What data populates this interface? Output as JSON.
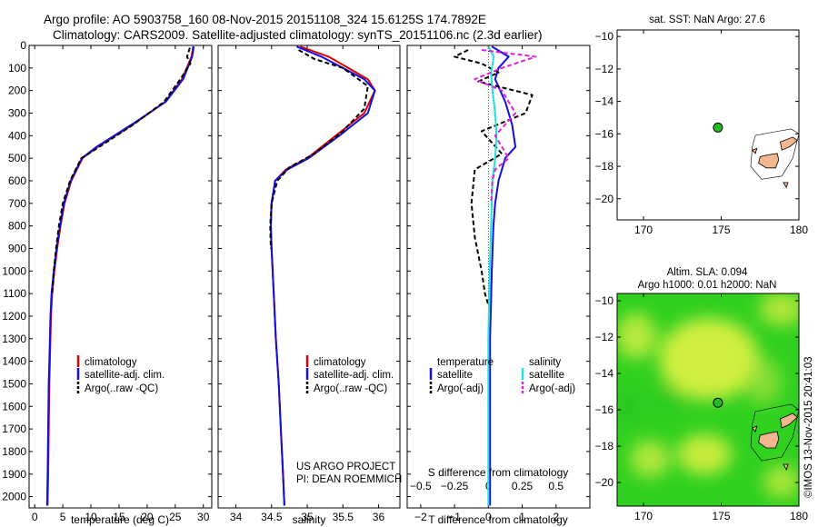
{
  "header": {
    "title_line1": "Argo profile: AO 5903758_160 08-Nov-2015 20151108_324 15.6125S 174.7892E",
    "title_line2": "Climatology: CARS2009. Satellite-adjusted climatology: synTS_20151106.nc (2.3d earlier)"
  },
  "colors": {
    "climatology": "#e00000",
    "satellite": "#1010e0",
    "argo": "#000000",
    "sal_satellite": "#20e0e0",
    "sal_argo": "#e020e0",
    "land": "#f2b690",
    "sla_green": "#30d020",
    "sla_yellow": "#d8f040",
    "marker": "#22bb22"
  },
  "chart_data": [
    {
      "type": "line",
      "id": "temperature-profile",
      "xlabel": "temperature (deg C)",
      "ylabel": "",
      "xlim": [
        -1,
        31.5
      ],
      "ylim": [
        2050,
        0
      ],
      "xticks": [
        0,
        5,
        10,
        15,
        20,
        25,
        30
      ],
      "yticks": [
        0,
        100,
        200,
        300,
        400,
        500,
        600,
        700,
        800,
        900,
        1000,
        1100,
        1200,
        1300,
        1400,
        1500,
        1600,
        1700,
        1800,
        1900,
        2000
      ],
      "legend": [
        "climatology",
        "satellite-adj. clim.",
        "Argo(..raw -QC)"
      ],
      "legend_position": "lower-center",
      "series": [
        {
          "name": "climatology",
          "style": "solid",
          "color": "#e00000",
          "x": [
            28.2,
            27.9,
            26.2,
            23.2,
            17.5,
            11.2,
            8.5,
            6.5,
            5.3,
            4.6,
            4.0,
            3.5,
            3.1,
            2.9,
            2.7,
            2.6,
            2.5,
            2.4,
            2.3
          ],
          "y": [
            5,
            50,
            150,
            250,
            350,
            450,
            500,
            600,
            700,
            800,
            900,
            1000,
            1100,
            1200,
            1400,
            1500,
            1700,
            1900,
            2040
          ]
        },
        {
          "name": "satellite-adj. clim.",
          "style": "solid",
          "color": "#1010e0",
          "x": [
            28.3,
            28.0,
            26.4,
            23.3,
            17.3,
            11.0,
            8.4,
            6.4,
            5.2,
            4.5,
            3.9,
            3.4,
            3.0,
            2.8,
            2.6,
            2.5,
            2.4,
            2.3,
            2.2
          ],
          "y": [
            5,
            50,
            150,
            250,
            350,
            450,
            500,
            600,
            700,
            800,
            900,
            1000,
            1100,
            1200,
            1400,
            1500,
            1700,
            1900,
            2040
          ]
        },
        {
          "name": "Argo(..raw -QC)",
          "style": "dashed",
          "color": "#000000",
          "x": [
            27.6,
            27.1,
            27.7,
            25.9,
            23.0,
            17.6,
            11.5,
            8.3,
            6.3,
            5.0,
            4.3,
            3.8,
            3.4,
            3.1
          ],
          "y": [
            10,
            50,
            80,
            150,
            250,
            350,
            450,
            500,
            600,
            700,
            800,
            900,
            1000,
            1100
          ]
        }
      ]
    },
    {
      "type": "line",
      "id": "salinity-profile",
      "xlabel": "salinity",
      "xlim": [
        33.75,
        36.3
      ],
      "ylim": [
        2050,
        0
      ],
      "xticks": [
        34,
        34.5,
        35,
        35.5,
        36
      ],
      "legend": [
        "climatology",
        "satellite-adj. clim.",
        "Argo(..raw -QC)"
      ],
      "legend_position": "lower-center",
      "annotation_line1": "US ARGO PROJECT",
      "annotation_line2": "PI: DEAN ROEMMICH",
      "series": [
        {
          "name": "climatology",
          "style": "solid",
          "color": "#e00000",
          "x": [
            34.9,
            35.3,
            35.85,
            35.95,
            35.8,
            35.4,
            35.0,
            34.7,
            34.55,
            34.5,
            34.49,
            34.5,
            34.53,
            34.56,
            34.6,
            34.63,
            34.66,
            34.68
          ],
          "y": [
            5,
            50,
            150,
            200,
            300,
            400,
            500,
            550,
            600,
            700,
            800,
            900,
            1100,
            1300,
            1500,
            1700,
            1900,
            2040
          ]
        },
        {
          "name": "satellite-adj. clim.",
          "style": "solid",
          "color": "#1010e0",
          "x": [
            34.85,
            35.2,
            35.8,
            35.95,
            35.85,
            35.45,
            35.02,
            34.72,
            34.55,
            34.5,
            34.49,
            34.5,
            34.53,
            34.56,
            34.6,
            34.63,
            34.66,
            34.68
          ],
          "y": [
            5,
            50,
            150,
            200,
            300,
            400,
            500,
            550,
            600,
            700,
            800,
            900,
            1100,
            1300,
            1500,
            1700,
            1900,
            2040
          ]
        },
        {
          "name": "Argo(..raw -QC)",
          "style": "dashed",
          "color": "#000000",
          "x": [
            34.88,
            35.1,
            35.5,
            35.85,
            35.8,
            35.5,
            35.1,
            34.75,
            34.58,
            34.5,
            34.48,
            34.49
          ],
          "y": [
            20,
            60,
            100,
            180,
            280,
            380,
            480,
            540,
            600,
            700,
            800,
            900
          ]
        }
      ]
    },
    {
      "type": "line",
      "id": "difference-profile",
      "xlabel": "T difference from climatology",
      "xlabel_top": "S difference from climatology",
      "xlim": [
        -2.4,
        3.0
      ],
      "ylim": [
        2050,
        0
      ],
      "xticks": [
        -2,
        -1,
        0,
        1,
        2
      ],
      "s_ticks": [
        -0.5,
        -0.25,
        0,
        0.25,
        0.5
      ],
      "legend_title_left": "temperature",
      "legend_title_right": "salinity",
      "legend_left": [
        "satellite",
        "Argo(-adj)"
      ],
      "legend_right": [
        "satellite",
        "Argo(-adj)"
      ],
      "legend_position": "lower-center",
      "series": [
        {
          "name": "temperature satellite",
          "style": "solid",
          "color": "#1010e0",
          "x": [
            0.1,
            0.6,
            0.3,
            0.2,
            0.5,
            0.7,
            0.8,
            0.5,
            0.3,
            0.2,
            0.15,
            0.1,
            0.05,
            0.05,
            0.05
          ],
          "y": [
            5,
            50,
            100,
            150,
            250,
            350,
            450,
            500,
            600,
            700,
            800,
            1000,
            1300,
            1600,
            2040
          ]
        },
        {
          "name": "temperature Argo(-adj)",
          "style": "dashed",
          "color": "#000000",
          "x": [
            -0.6,
            -1.0,
            -0.2,
            0.3,
            -0.3,
            1.3,
            1.1,
            -0.2,
            0.4,
            -0.4,
            -0.5,
            -0.4,
            -0.2,
            -0.1,
            0.0
          ],
          "y": [
            20,
            50,
            80,
            120,
            160,
            220,
            300,
            380,
            480,
            550,
            700,
            850,
            1000,
            1100,
            1150
          ]
        },
        {
          "name": "salinity satellite",
          "style": "solid",
          "color": "#20e0e0",
          "x": [
            0.0,
            0.04,
            0.02,
            0.03,
            0.05,
            0.06,
            0.05,
            0.03,
            0.02,
            0.01,
            0.0,
            0.0
          ],
          "y": [
            5,
            50,
            120,
            200,
            300,
            400,
            500,
            600,
            800,
            1000,
            1300,
            2040
          ]
        },
        {
          "name": "salinity Argo(-adj)",
          "style": "dashed",
          "color": "#e020e0",
          "x": [
            -0.05,
            0.35,
            0.1,
            -0.1,
            0.1,
            0.2,
            0.05,
            0.15,
            0.05,
            0.03,
            0.02
          ],
          "y": [
            20,
            50,
            100,
            150,
            200,
            300,
            400,
            500,
            550,
            600,
            700
          ]
        }
      ]
    },
    {
      "type": "scatter",
      "id": "sst-map",
      "title": "sat. SST: NaN Argo: 27.6",
      "xlim": [
        168.3,
        180.0
      ],
      "ylim": [
        -21.3,
        -9.6
      ],
      "xticks": [
        170,
        175,
        180
      ],
      "yticks": [
        -10,
        -12,
        -14,
        -16,
        -18,
        -20
      ],
      "marker": {
        "x": 174.79,
        "y": -15.61
      }
    },
    {
      "type": "heatmap",
      "id": "sla-map",
      "title_line1": "Altim. SLA: 0.094",
      "title_line2": "Argo h1000: 0.01 h2000: NaN",
      "xlim": [
        168.3,
        180.0
      ],
      "ylim": [
        -21.3,
        -9.6
      ],
      "xticks": [
        170,
        175,
        180
      ],
      "yticks": [
        -10,
        -12,
        -14,
        -16,
        -18,
        -20
      ],
      "marker": {
        "x": 174.79,
        "y": -15.61
      }
    }
  ],
  "footer": {
    "stamp": "©IMOS 13-Nov-2015 20:41:03"
  }
}
